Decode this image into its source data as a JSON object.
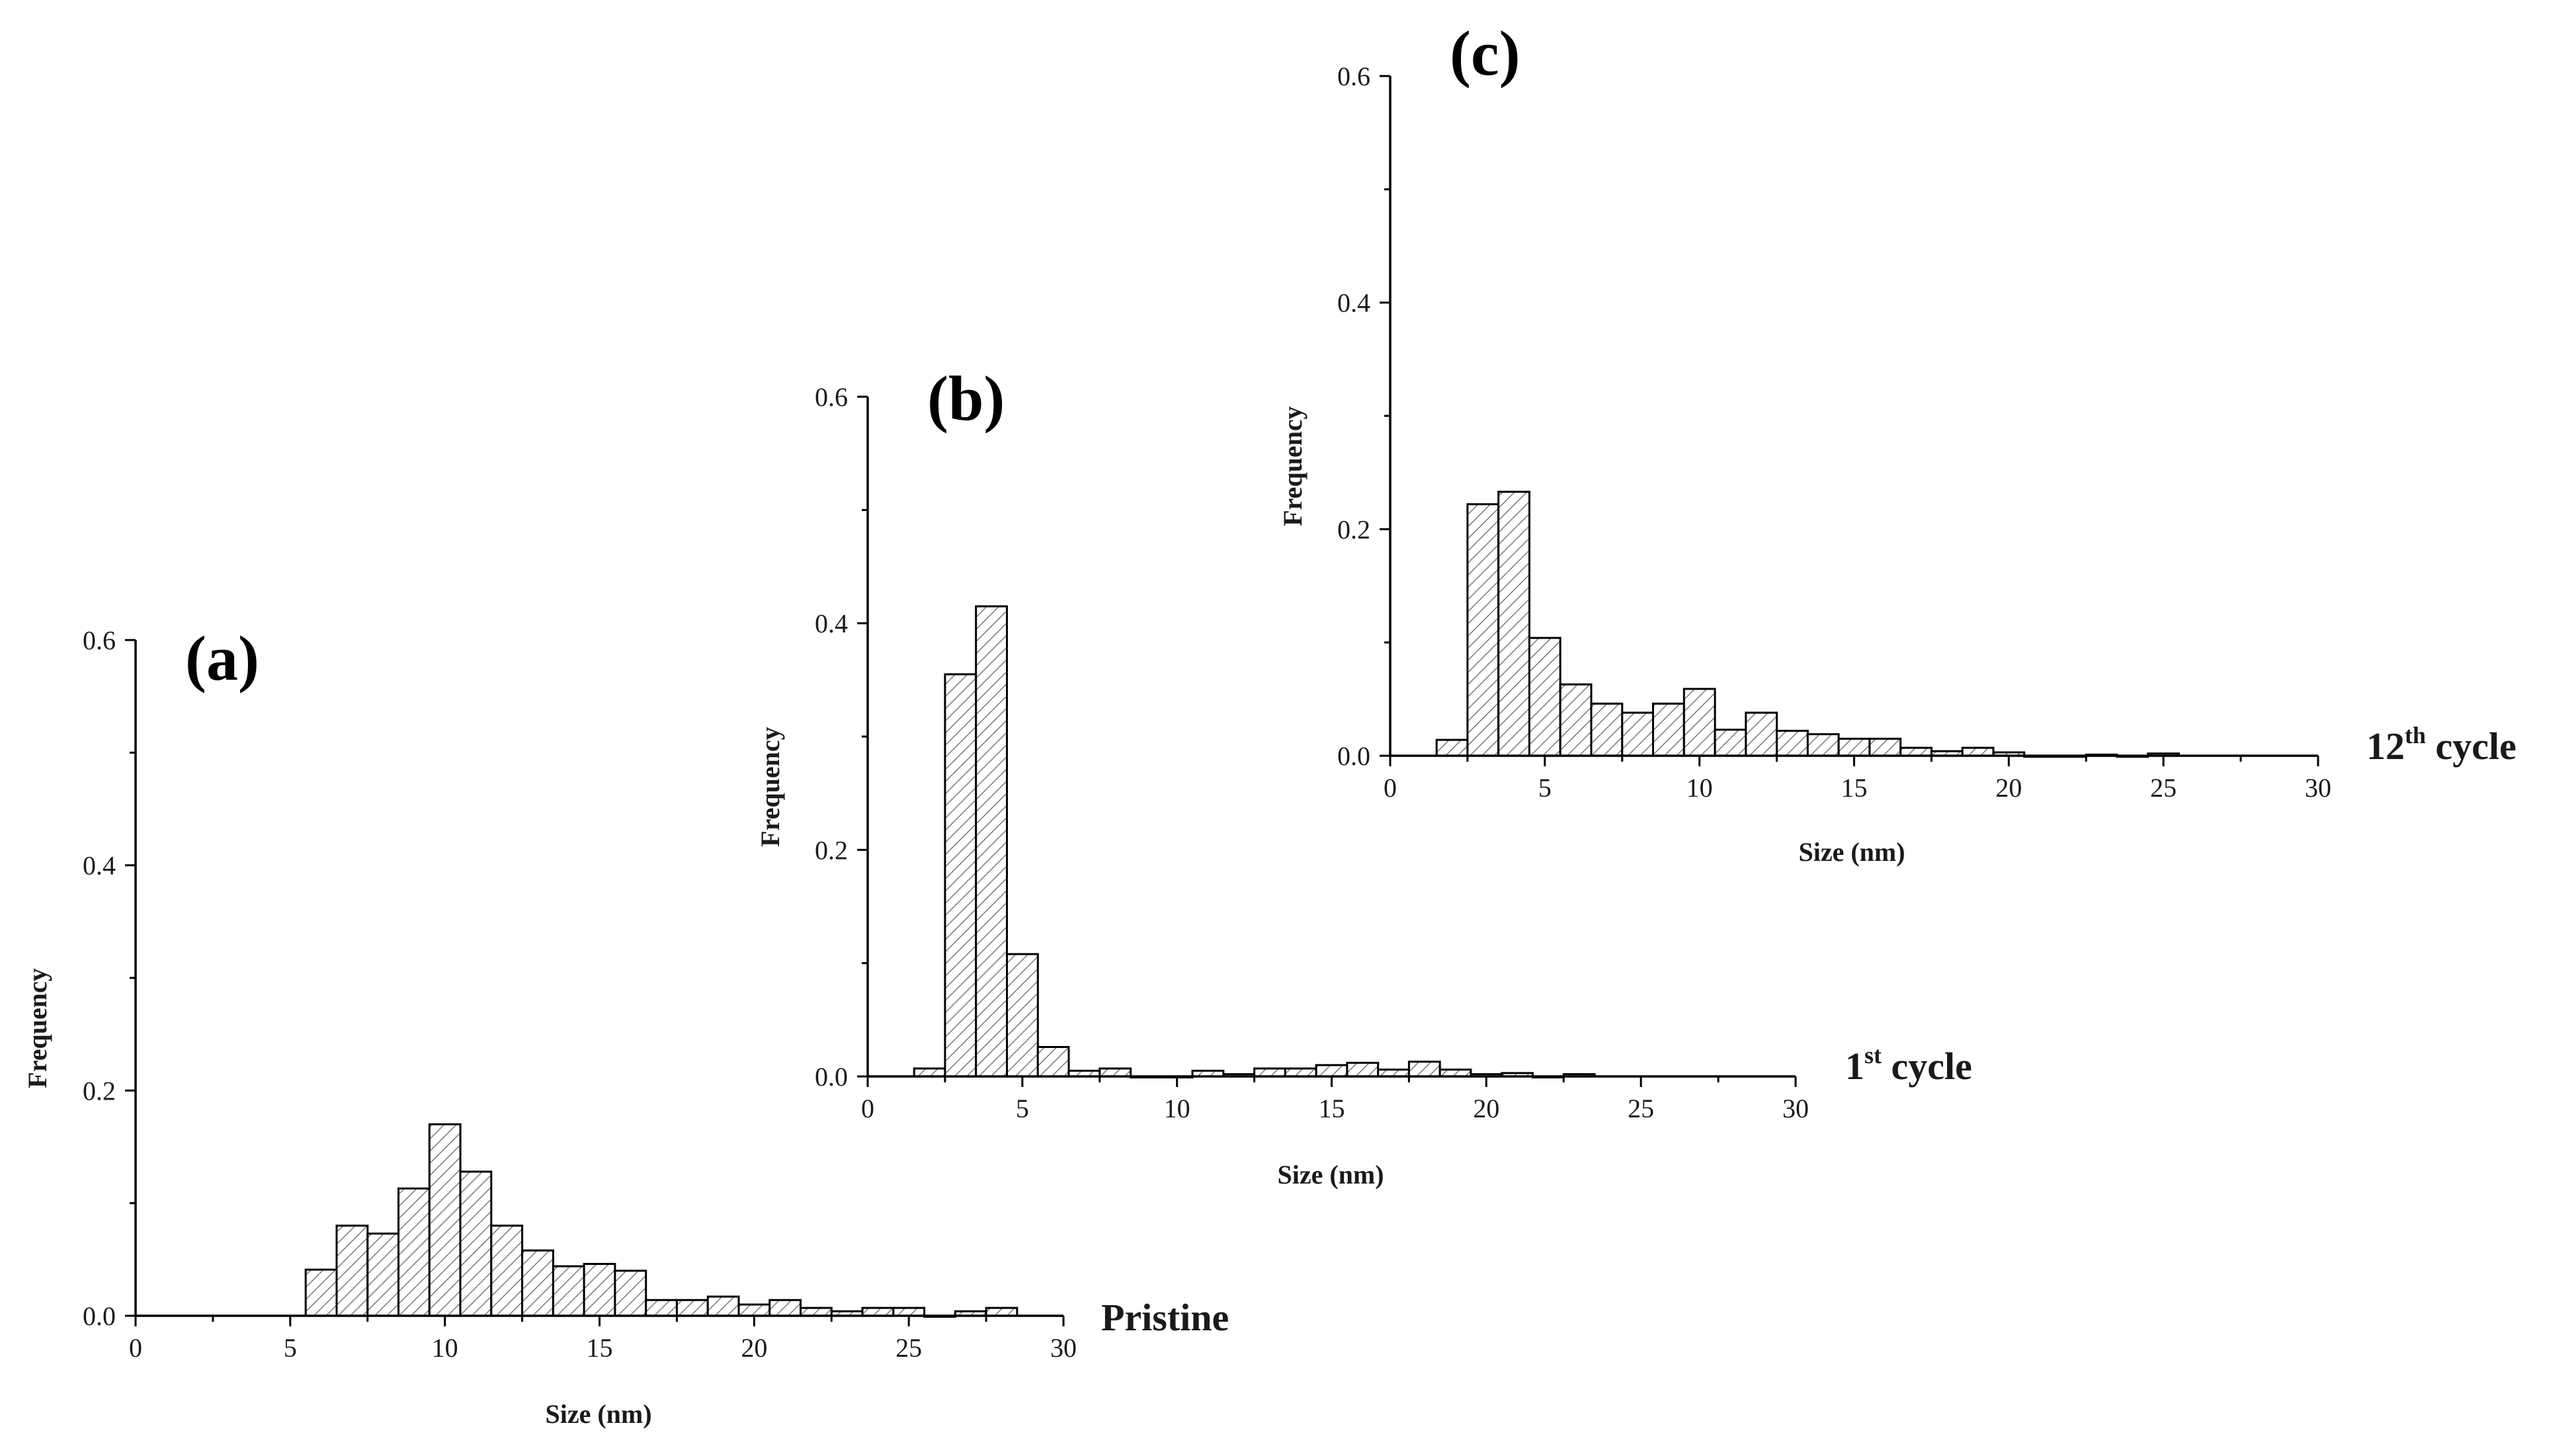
{
  "chart_data": [
    {
      "type": "bar",
      "panel": "(a)",
      "series_label": "Pristine",
      "xlabel": "Size (nm)",
      "ylabel": "Frequency",
      "xlim": [
        0,
        30
      ],
      "ylim": [
        0,
        0.6
      ],
      "xticks": [
        "0",
        "5",
        "10",
        "15",
        "20",
        "25",
        "30"
      ],
      "yticks": [
        "0.0",
        "0.2",
        "0.4",
        "0.6"
      ],
      "grid": false,
      "bin_width": 1,
      "bin_centers": [
        6,
        7,
        8,
        9,
        10,
        11,
        12,
        13,
        14,
        15,
        16,
        17,
        18,
        19,
        20,
        21,
        22,
        23,
        24,
        25,
        26,
        27,
        28
      ],
      "values": [
        0.041,
        0.08,
        0.073,
        0.113,
        0.17,
        0.128,
        0.08,
        0.058,
        0.044,
        0.046,
        0.04,
        0.014,
        0.014,
        0.017,
        0.01,
        0.014,
        0.007,
        0.004,
        0.007,
        0.007,
        0,
        0.004,
        0.007
      ]
    },
    {
      "type": "bar",
      "panel": "(b)",
      "series_label_base": "1",
      "series_label_sup": "st",
      "series_label_rest": " cycle",
      "xlabel": "Size (nm)",
      "ylabel": "Frequency",
      "xlim": [
        0,
        30
      ],
      "ylim": [
        0,
        0.6
      ],
      "xticks": [
        "0",
        "5",
        "10",
        "15",
        "20",
        "25",
        "30"
      ],
      "yticks": [
        "0.0",
        "0.2",
        "0.4",
        "0.6"
      ],
      "grid": false,
      "bin_width": 1,
      "bin_centers": [
        2,
        3,
        4,
        5,
        6,
        7,
        8,
        9,
        10,
        11,
        12,
        13,
        14,
        15,
        16,
        17,
        18,
        19,
        20,
        21,
        22,
        23
      ],
      "values": [
        0.007,
        0.355,
        0.415,
        0.108,
        0.026,
        0.005,
        0.007,
        0,
        0,
        0.005,
        0.002,
        0.007,
        0.007,
        0.01,
        0.012,
        0.006,
        0.013,
        0.006,
        0.002,
        0.003,
        0,
        0.002
      ]
    },
    {
      "type": "bar",
      "panel": "(c)",
      "series_label_base": "12",
      "series_label_sup": "th",
      "series_label_rest": " cycle",
      "xlabel": "Size (nm)",
      "ylabel": "Frequency",
      "xlim": [
        0,
        30
      ],
      "ylim": [
        0,
        0.6
      ],
      "xticks": [
        "0",
        "5",
        "10",
        "15",
        "20",
        "25",
        "30"
      ],
      "yticks": [
        "0.0",
        "0.2",
        "0.4",
        "0.6"
      ],
      "grid": false,
      "bin_width": 1,
      "bin_centers": [
        2,
        3,
        4,
        5,
        6,
        7,
        8,
        9,
        10,
        11,
        12,
        13,
        14,
        15,
        16,
        17,
        18,
        19,
        20,
        21,
        22,
        23,
        24,
        25
      ],
      "values": [
        0.014,
        0.222,
        0.233,
        0.104,
        0.063,
        0.046,
        0.038,
        0.046,
        0.059,
        0.023,
        0.038,
        0.022,
        0.019,
        0.015,
        0.015,
        0.007,
        0.004,
        0.007,
        0.003,
        0,
        0,
        0.001,
        0,
        0.002
      ]
    }
  ]
}
